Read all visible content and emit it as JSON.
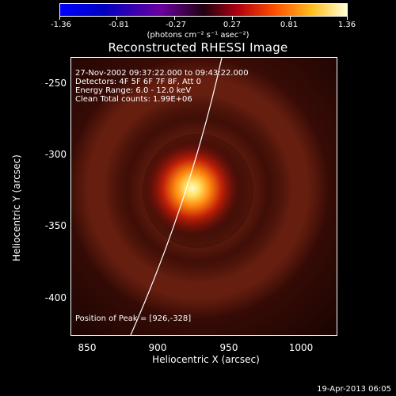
{
  "colorbar": {
    "ticks": [
      "-1.36",
      "-0.81",
      "-0.27",
      "0.27",
      "0.81",
      "1.36"
    ],
    "unit": "(photons cm⁻² s⁻¹ asec⁻²)"
  },
  "title": "Reconstructed RHESSI Image",
  "info": {
    "time_range": "27-Nov-2002 09:37:22.000 to 09:43:22.000",
    "detectors": "Detectors: 4F 5F 6F 7F 8F, Att 0",
    "energy": "Energy Range: 6.0 - 12.0 keV",
    "method": "Clean    Total counts: 1.99E+06",
    "peak": "Position of Peak = [926,-328]"
  },
  "axes": {
    "ylabel": "Heliocentric Y (arcsec)",
    "xlabel": "Heliocentric X (arcsec)",
    "yticks": [
      "-250",
      "-300",
      "-350",
      "-400"
    ],
    "xticks": [
      "850",
      "900",
      "950",
      "1000"
    ]
  },
  "footer": "19-Apr-2013 06:05",
  "colors": {
    "background": "#000000",
    "limb_line": "#ffffff",
    "source_peak": "#fff8c0"
  }
}
